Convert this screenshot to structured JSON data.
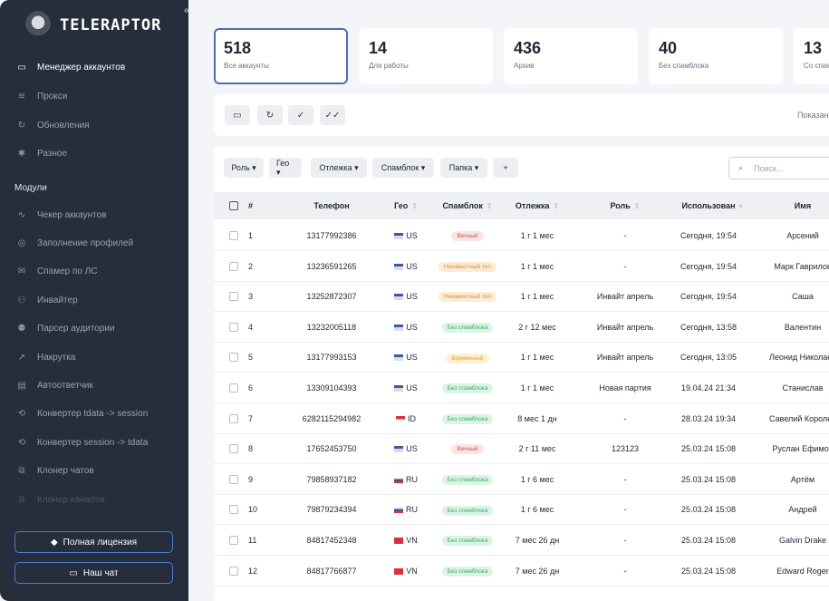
{
  "app": {
    "name": "TELERAPTOR",
    "collapse_glyph": "«"
  },
  "sidebar": {
    "items": [
      {
        "label": "Менеджер аккаунтов",
        "icon": "monitor-icon",
        "glyph": "▭",
        "active": true
      },
      {
        "label": "Прокси",
        "icon": "wifi-icon",
        "glyph": "≋"
      },
      {
        "label": "Обновления",
        "icon": "refresh-icon",
        "glyph": "↻"
      },
      {
        "label": "Разное",
        "icon": "gear-icon",
        "glyph": "✱"
      }
    ],
    "modules_title": "Модули",
    "modules": [
      {
        "label": "Чекер аккаунтов",
        "icon": "pulse-icon",
        "glyph": "∿"
      },
      {
        "label": "Заполнение профилей",
        "icon": "user-circle-icon",
        "glyph": "◎"
      },
      {
        "label": "Спамер по ЛС",
        "icon": "mail-icon",
        "glyph": "✉"
      },
      {
        "label": "Инвайтер",
        "icon": "user-add-icon",
        "glyph": "⚇"
      },
      {
        "label": "Парсер аудитории",
        "icon": "users-icon",
        "glyph": "⚉"
      },
      {
        "label": "Накрутка",
        "icon": "trend-icon",
        "glyph": "↗"
      },
      {
        "label": "Автоответчик",
        "icon": "message-icon",
        "glyph": "▤"
      },
      {
        "label": "Конвертер tdata -> session",
        "icon": "convert-icon",
        "glyph": "⟲"
      },
      {
        "label": "Конвертер session -> tdata",
        "icon": "convert-icon",
        "glyph": "⟲"
      },
      {
        "label": "Клонер чатов",
        "icon": "copy-icon",
        "glyph": "⧉"
      },
      {
        "label": "Клонер каналов",
        "icon": "copy-icon",
        "glyph": "⧉",
        "dim": true
      }
    ],
    "license_button": {
      "label": "Полная лицензия",
      "icon": "diamond-icon",
      "glyph": "◆"
    },
    "chat_button": {
      "label": "Наш чат",
      "icon": "chat-icon",
      "glyph": "▭"
    }
  },
  "stats": [
    {
      "value": "518",
      "label": "Все аккаунты",
      "active": true
    },
    {
      "value": "14",
      "label": "Для работы"
    },
    {
      "value": "436",
      "label": "Архив"
    },
    {
      "value": "40",
      "label": "Без спамблока"
    },
    {
      "value": "13",
      "label": "Со спамблоком"
    }
  ],
  "toolbar": {
    "buttons": [
      {
        "name": "folder-icon",
        "glyph": "▭"
      },
      {
        "name": "refresh-icon",
        "glyph": "↻"
      },
      {
        "name": "check-icon",
        "glyph": "✓"
      },
      {
        "name": "double-check-icon",
        "glyph": "✓✓"
      }
    ],
    "show_label": "Показано"
  },
  "filters": [
    {
      "label": "Роль ▾"
    },
    {
      "label": "Гео ▾"
    },
    {
      "label": "Отлежка ▾"
    },
    {
      "label": "Спамблок ▾"
    },
    {
      "label": "Папка ▾"
    },
    {
      "label": "+"
    }
  ],
  "search": {
    "placeholder": "Поиск...",
    "glyph": "⌕"
  },
  "table": {
    "columns": [
      "#",
      "Телефон",
      "Гео",
      "Спамблок",
      "Отлежка",
      "Роль",
      "Использован",
      "Имя"
    ],
    "sort_glyph": "⇕",
    "sort_active_glyph": "▾",
    "rows": [
      {
        "n": "1",
        "phone": "13177992386",
        "geo": "US",
        "spam": "Вечный",
        "spam_type": "red",
        "age": "1 г 1 мес",
        "role": "-",
        "used": "Сегодня, 19:54",
        "name": "Арсений"
      },
      {
        "n": "2",
        "phone": "13236591265",
        "geo": "US",
        "spam": "Неизвестный тип",
        "spam_type": "orange",
        "age": "1 г 1 мес",
        "role": "-",
        "used": "Сегодня, 19:54",
        "name": "Марк Гаврилов"
      },
      {
        "n": "3",
        "phone": "13252872307",
        "geo": "US",
        "spam": "Неизвестный тип",
        "spam_type": "orange",
        "age": "1 г 1 мес",
        "role": "Инвайт апрель",
        "used": "Сегодня, 19:54",
        "name": "Саша"
      },
      {
        "n": "4",
        "phone": "13232005118",
        "geo": "US",
        "spam": "Без спамблока",
        "spam_type": "green",
        "age": "2 г 12 мес",
        "role": "Инвайт апрель",
        "used": "Сегодня, 13:58",
        "name": "Валентин"
      },
      {
        "n": "5",
        "phone": "13177993153",
        "geo": "US",
        "spam": "Временный",
        "spam_type": "yellow",
        "age": "1 г 1 мес",
        "role": "Инвайт апрель",
        "used": "Сегодня, 13:05",
        "name": "Леонид Николаев"
      },
      {
        "n": "6",
        "phone": "13309104393",
        "geo": "US",
        "spam": "Без спамблока",
        "spam_type": "green",
        "age": "1 г 1 мес",
        "role": "Новая партия",
        "used": "19.04.24 21:34",
        "name": "Станислав"
      },
      {
        "n": "7",
        "phone": "6282115294982",
        "geo": "ID",
        "spam": "Без спамблока",
        "spam_type": "green",
        "age": "8 мес 1 дн",
        "role": "-",
        "used": "28.03.24 19:34",
        "name": "Савелий Королев"
      },
      {
        "n": "8",
        "phone": "17652453750",
        "geo": "US",
        "spam": "Вечный",
        "spam_type": "red",
        "age": "2 г 11 мес",
        "role": "123123",
        "used": "25.03.24 15:08",
        "name": "Руслан Ефимов"
      },
      {
        "n": "9",
        "phone": "79858937182",
        "geo": "RU",
        "spam": "Без спамблока",
        "spam_type": "green",
        "age": "1 г 6 мес",
        "role": "-",
        "used": "25.03.24 15:08",
        "name": "Артём"
      },
      {
        "n": "10",
        "phone": "79879234394",
        "geo": "RU",
        "spam": "Без спамблока",
        "spam_type": "green",
        "age": "1 г 6 мес",
        "role": "-",
        "used": "25.03.24 15:08",
        "name": "Андрей"
      },
      {
        "n": "11",
        "phone": "84817452348",
        "geo": "VN",
        "spam": "Без спамблока",
        "spam_type": "green",
        "age": "7 мес 26 дн",
        "role": "-",
        "used": "25.03.24 15:08",
        "name": "Galvin Drake"
      },
      {
        "n": "12",
        "phone": "84817766877",
        "geo": "VN",
        "spam": "Без спамблока",
        "spam_type": "green",
        "age": "7 мес 26 дн",
        "role": "-",
        "used": "25.03.24 15:08",
        "name": "Edward Roger"
      }
    ]
  }
}
